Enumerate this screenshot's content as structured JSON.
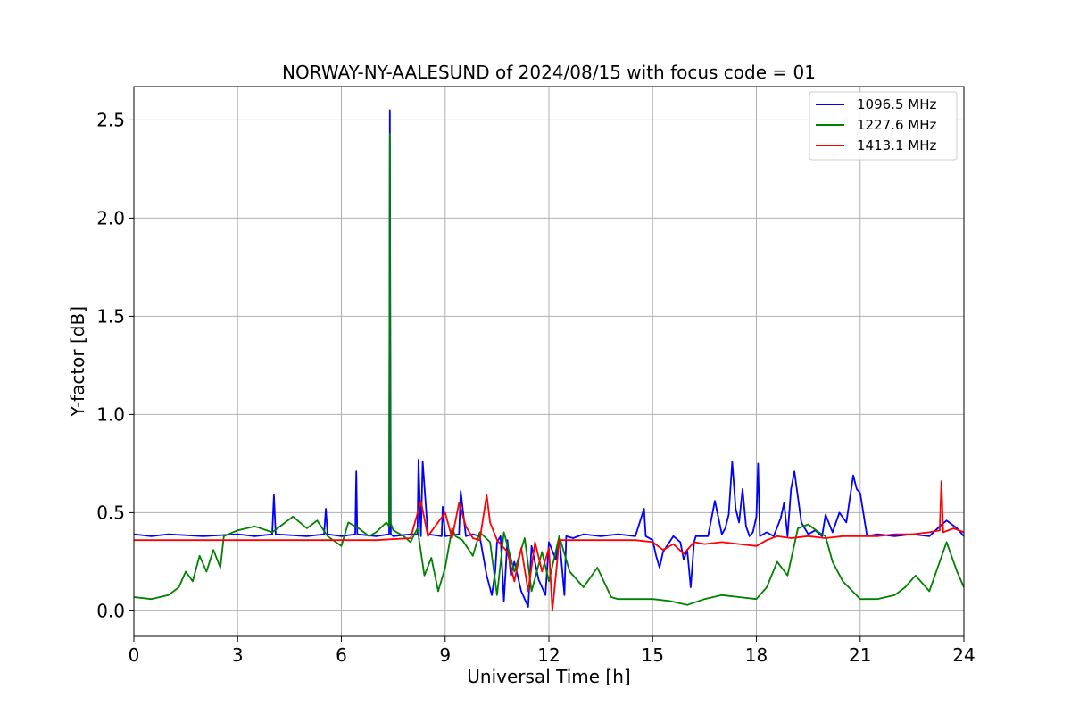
{
  "chart_data": {
    "type": "line",
    "title": "NORWAY-NY-AALESUND of 2024/08/15 with focus code = 01",
    "xlabel": "Universal Time [h]",
    "ylabel": "Y-factor [dB]",
    "xlim": [
      0,
      24
    ],
    "ylim": [
      -0.13,
      2.67
    ],
    "xticks": [
      0,
      3,
      6,
      9,
      12,
      15,
      18,
      21,
      24
    ],
    "xtick_labels": [
      "0",
      "3",
      "6",
      "9",
      "12",
      "15",
      "18",
      "21",
      "24"
    ],
    "yticks": [
      0.0,
      0.5,
      1.0,
      1.5,
      2.0,
      2.5
    ],
    "ytick_labels": [
      "0.0",
      "0.5",
      "1.0",
      "1.5",
      "2.0",
      "2.5"
    ],
    "grid": true,
    "legend_position": "top-right",
    "series": [
      {
        "name": "1096.5 MHz",
        "color": "#0000ff",
        "x": [
          0,
          0.5,
          1.0,
          2.0,
          3.0,
          3.5,
          4.0,
          4.05,
          4.1,
          5.0,
          5.5,
          5.55,
          5.6,
          6.0,
          6.4,
          6.43,
          6.46,
          7.0,
          7.38,
          7.4,
          7.43,
          7.5,
          8.0,
          8.2,
          8.23,
          8.3,
          8.35,
          8.5,
          8.9,
          8.93,
          9.0,
          9.4,
          9.45,
          9.6,
          9.8,
          10.0,
          10.2,
          10.35,
          10.45,
          10.5,
          10.6,
          10.7,
          10.8,
          10.9,
          11.0,
          11.2,
          11.4,
          11.5,
          11.7,
          11.9,
          12.0,
          12.2,
          12.3,
          12.45,
          12.5,
          12.7,
          13.0,
          13.5,
          14.0,
          14.5,
          14.75,
          14.8,
          15.0,
          15.1,
          15.2,
          15.3,
          15.6,
          15.8,
          15.9,
          16.0,
          16.1,
          16.2,
          16.25,
          16.3,
          16.6,
          16.8,
          17.0,
          17.1,
          17.2,
          17.3,
          17.4,
          17.5,
          17.6,
          17.7,
          17.8,
          17.9,
          18.0,
          18.05,
          18.1,
          18.3,
          18.5,
          18.7,
          18.8,
          18.9,
          19.0,
          19.1,
          19.2,
          19.3,
          19.5,
          19.7,
          19.9,
          20.0,
          20.2,
          20.4,
          20.6,
          20.8,
          20.9,
          21.0,
          21.2,
          21.5,
          22.0,
          22.5,
          23.0,
          23.3,
          23.5,
          23.8,
          24.0
        ],
        "y": [
          0.39,
          0.38,
          0.39,
          0.38,
          0.39,
          0.38,
          0.39,
          0.59,
          0.39,
          0.38,
          0.39,
          0.52,
          0.39,
          0.38,
          0.39,
          0.71,
          0.39,
          0.38,
          0.39,
          2.55,
          0.39,
          0.38,
          0.39,
          0.39,
          0.77,
          0.38,
          0.76,
          0.39,
          0.38,
          0.53,
          0.38,
          0.39,
          0.61,
          0.38,
          0.39,
          0.38,
          0.18,
          0.08,
          0.2,
          0.35,
          0.38,
          0.05,
          0.36,
          0.18,
          0.25,
          0.1,
          0.02,
          0.33,
          0.16,
          0.08,
          0.35,
          0.26,
          0.38,
          0.08,
          0.38,
          0.37,
          0.39,
          0.38,
          0.39,
          0.38,
          0.52,
          0.38,
          0.36,
          0.28,
          0.22,
          0.3,
          0.38,
          0.35,
          0.26,
          0.31,
          0.12,
          0.35,
          0.38,
          0.38,
          0.38,
          0.56,
          0.39,
          0.42,
          0.49,
          0.76,
          0.52,
          0.45,
          0.62,
          0.43,
          0.38,
          0.4,
          0.48,
          0.75,
          0.38,
          0.4,
          0.38,
          0.47,
          0.55,
          0.38,
          0.62,
          0.71,
          0.58,
          0.45,
          0.39,
          0.41,
          0.38,
          0.49,
          0.4,
          0.5,
          0.45,
          0.69,
          0.62,
          0.6,
          0.38,
          0.39,
          0.38,
          0.39,
          0.38,
          0.43,
          0.46,
          0.42,
          0.38
        ]
      },
      {
        "name": "1227.6 MHz",
        "color": "#008000",
        "x": [
          0,
          0.5,
          1.0,
          1.3,
          1.5,
          1.7,
          1.9,
          2.1,
          2.3,
          2.5,
          2.6,
          3.0,
          3.5,
          4.0,
          4.3,
          4.6,
          5.0,
          5.3,
          5.6,
          6.0,
          6.2,
          6.5,
          6.8,
          7.0,
          7.3,
          7.38,
          7.4,
          7.42,
          7.5,
          7.8,
          8.0,
          8.2,
          8.4,
          8.6,
          8.8,
          9.0,
          9.2,
          9.3,
          9.5,
          9.8,
          10.0,
          10.3,
          10.5,
          10.7,
          11.0,
          11.3,
          11.5,
          11.8,
          12.0,
          12.3,
          12.6,
          13.0,
          13.4,
          13.8,
          14.0,
          14.5,
          15.0,
          15.5,
          16.0,
          16.5,
          17.0,
          17.5,
          18.0,
          18.3,
          18.6,
          18.9,
          19.2,
          19.5,
          19.8,
          20.0,
          20.2,
          20.5,
          21.0,
          21.5,
          22.0,
          22.3,
          22.6,
          23.0,
          23.3,
          23.5,
          23.8,
          24.0
        ],
        "y": [
          0.07,
          0.06,
          0.08,
          0.12,
          0.2,
          0.15,
          0.28,
          0.2,
          0.31,
          0.22,
          0.38,
          0.41,
          0.43,
          0.4,
          0.44,
          0.48,
          0.42,
          0.46,
          0.38,
          0.33,
          0.45,
          0.42,
          0.38,
          0.4,
          0.45,
          0.43,
          2.43,
          0.45,
          0.41,
          0.38,
          0.35,
          0.42,
          0.18,
          0.27,
          0.1,
          0.22,
          0.42,
          0.38,
          0.36,
          0.28,
          0.4,
          0.35,
          0.08,
          0.4,
          0.2,
          0.37,
          0.1,
          0.3,
          0.15,
          0.38,
          0.2,
          0.12,
          0.22,
          0.07,
          0.06,
          0.06,
          0.06,
          0.05,
          0.03,
          0.06,
          0.08,
          0.07,
          0.06,
          0.12,
          0.25,
          0.18,
          0.42,
          0.44,
          0.4,
          0.38,
          0.25,
          0.15,
          0.06,
          0.06,
          0.08,
          0.12,
          0.18,
          0.1,
          0.25,
          0.35,
          0.2,
          0.12
        ]
      },
      {
        "name": "1413.1 MHz",
        "color": "#ff0000",
        "x": [
          0,
          1.0,
          2.0,
          3.0,
          4.0,
          5.0,
          6.0,
          7.0,
          8.0,
          8.3,
          8.5,
          9.0,
          9.2,
          9.4,
          9.6,
          9.8,
          10.0,
          10.2,
          10.3,
          10.5,
          10.8,
          11.0,
          11.2,
          11.4,
          11.6,
          11.8,
          12.0,
          12.1,
          12.3,
          12.5,
          13.0,
          13.5,
          14.0,
          14.5,
          15.0,
          15.3,
          15.6,
          15.9,
          16.2,
          16.5,
          17.0,
          17.5,
          18.0,
          18.3,
          18.6,
          19.0,
          19.5,
          20.0,
          20.5,
          21.0,
          21.5,
          22.0,
          22.5,
          23.0,
          23.3,
          23.35,
          23.4,
          23.7,
          24.0
        ],
        "y": [
          0.36,
          0.36,
          0.36,
          0.36,
          0.36,
          0.36,
          0.36,
          0.36,
          0.37,
          0.56,
          0.38,
          0.5,
          0.37,
          0.55,
          0.43,
          0.37,
          0.36,
          0.59,
          0.45,
          0.36,
          0.3,
          0.15,
          0.32,
          0.1,
          0.35,
          0.2,
          0.32,
          0.0,
          0.36,
          0.36,
          0.36,
          0.36,
          0.36,
          0.36,
          0.35,
          0.31,
          0.34,
          0.29,
          0.35,
          0.34,
          0.35,
          0.34,
          0.33,
          0.36,
          0.38,
          0.37,
          0.38,
          0.37,
          0.38,
          0.38,
          0.38,
          0.39,
          0.39,
          0.4,
          0.41,
          0.66,
          0.4,
          0.42,
          0.4
        ]
      }
    ]
  }
}
